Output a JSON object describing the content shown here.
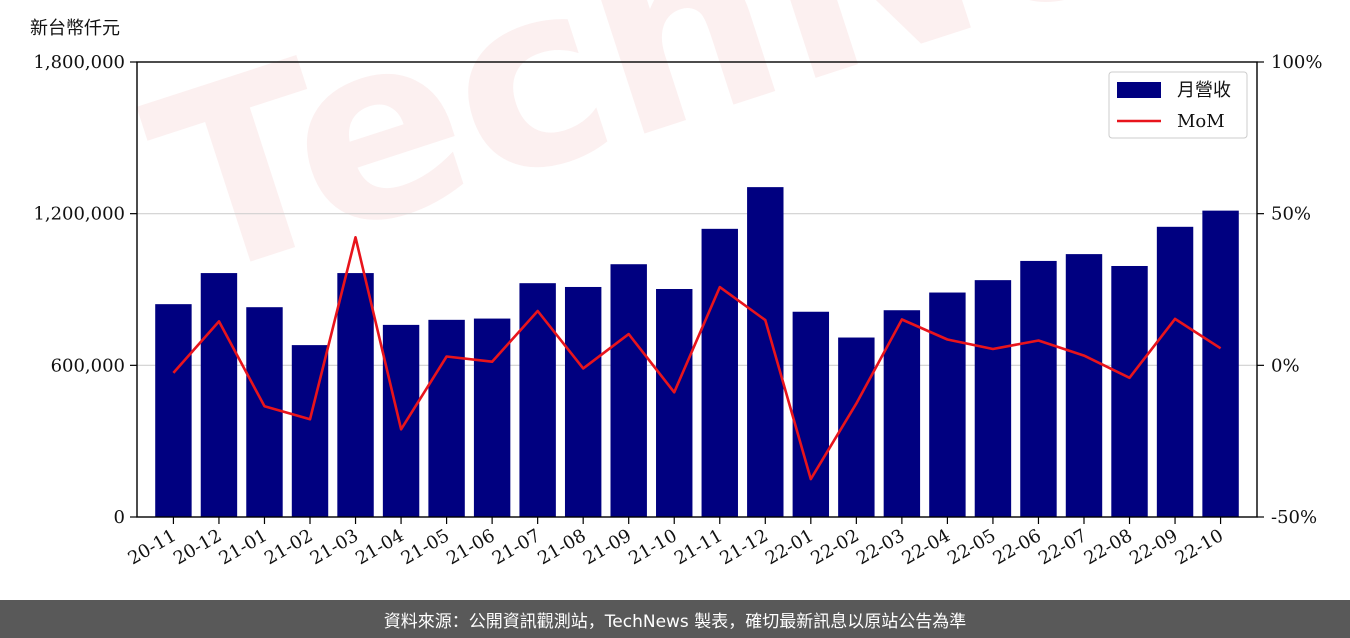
{
  "header": {
    "unit_label": "新台幣仟元"
  },
  "watermark": {
    "text": "TechNews"
  },
  "footer": {
    "text": "資料來源：公開資訊觀測站，TechNews 製表，確切最新訊息以原站公告為準"
  },
  "colors": {
    "bar": "#000080",
    "line": "#e8141c",
    "grid": "#d0d0d0"
  },
  "chart_data": {
    "type": "bar",
    "categories": [
      "20-11",
      "20-12",
      "21-01",
      "21-02",
      "21-03",
      "21-04",
      "21-05",
      "21-06",
      "21-07",
      "21-08",
      "21-09",
      "21-10",
      "21-11",
      "21-12",
      "22-01",
      "22-02",
      "22-03",
      "22-04",
      "22-05",
      "22-06",
      "22-07",
      "22-08",
      "22-09",
      "22-10"
    ],
    "series": [
      {
        "name": "月營收",
        "type": "bar",
        "axis": "left",
        "values": [
          842000,
          965000,
          830000,
          680000,
          965000,
          760000,
          780000,
          785000,
          925000,
          910000,
          1000000,
          902000,
          1140000,
          1305000,
          812000,
          710000,
          818000,
          888000,
          937000,
          1013000,
          1040000,
          993000,
          1148000,
          1212000
        ]
      },
      {
        "name": "MoM",
        "type": "line",
        "axis": "right",
        "values": [
          -2.5,
          14.5,
          -13.5,
          -17.8,
          42.2,
          -21.1,
          2.9,
          1.2,
          17.9,
          -1.0,
          10.3,
          -8.9,
          25.8,
          14.9,
          -37.5,
          -12.6,
          15.1,
          8.5,
          5.4,
          8.2,
          3.2,
          -4.1,
          15.3,
          5.6
        ]
      }
    ],
    "ylim_left": [
      0,
      1800000
    ],
    "yticks_left": [
      "0",
      "600,000",
      "1,200,000",
      "1,800,000"
    ],
    "ylim_right": [
      -50,
      100
    ],
    "yticks_right": [
      "-50%",
      "0%",
      "50%",
      "100%"
    ],
    "legend": {
      "placement": "top-right",
      "entries": [
        "月營收",
        "MoM"
      ]
    },
    "grid": "horizontal"
  }
}
